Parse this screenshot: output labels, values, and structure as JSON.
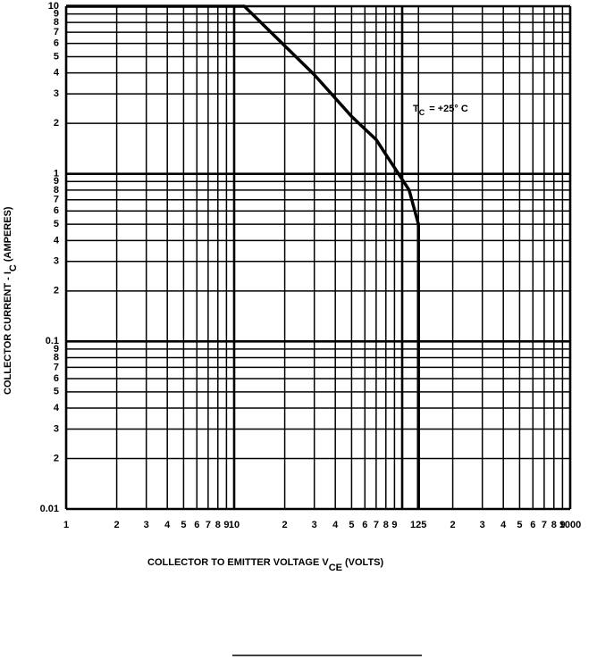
{
  "chart_data": {
    "type": "line",
    "log_x": true,
    "log_y": true,
    "grid": true,
    "xlabel": {
      "text": "COLLECTOR TO EMITTER VOLTAGE V",
      "subscript": "CE",
      "suffix": "(VOLTS)"
    },
    "ylabel": {
      "text": "COLLECTOR CURRENT - I",
      "subscript": "C",
      "suffix": "(AMPERES)"
    },
    "annotation": {
      "text": "T",
      "subscript": "C",
      "suffix": "= +25° C"
    },
    "xlim": [
      1,
      1000
    ],
    "ylim": [
      0.01,
      10
    ],
    "xticks": [
      1,
      2,
      3,
      4,
      5,
      6,
      7,
      8,
      9,
      10,
      {
        "value": 20,
        "label": "2"
      },
      {
        "value": 30,
        "label": "3"
      },
      {
        "value": 40,
        "label": "4"
      },
      {
        "value": 50,
        "label": "5"
      },
      {
        "value": 60,
        "label": "6"
      },
      {
        "value": 70,
        "label": "7"
      },
      {
        "value": 80,
        "label": "8"
      },
      {
        "value": 90,
        "label": "9"
      },
      125,
      {
        "value": 200,
        "label": "2"
      },
      {
        "value": 300,
        "label": "3"
      },
      {
        "value": 400,
        "label": "4"
      },
      {
        "value": 500,
        "label": "5"
      },
      {
        "value": 600,
        "label": "6"
      },
      {
        "value": 700,
        "label": "7"
      },
      {
        "value": 800,
        "label": "8"
      },
      {
        "value": 900,
        "label": "9"
      },
      1000
    ],
    "yticks": [
      0.01,
      {
        "value": 0.02,
        "label": "2"
      },
      {
        "value": 0.03,
        "label": "3"
      },
      {
        "value": 0.04,
        "label": "4"
      },
      {
        "value": 0.05,
        "label": "5"
      },
      {
        "value": 0.06,
        "label": "6"
      },
      {
        "value": 0.07,
        "label": "7"
      },
      {
        "value": 0.08,
        "label": "8"
      },
      {
        "value": 0.09,
        "label": "9"
      },
      0.1,
      {
        "value": 0.2,
        "label": "2"
      },
      {
        "value": 0.3,
        "label": "3"
      },
      {
        "value": 0.4,
        "label": "4"
      },
      {
        "value": 0.5,
        "label": "5"
      },
      {
        "value": 0.6,
        "label": "6"
      },
      {
        "value": 0.7,
        "label": "7"
      },
      {
        "value": 0.8,
        "label": "8"
      },
      {
        "value": 0.9,
        "label": "9"
      },
      1,
      2,
      3,
      4,
      5,
      6,
      7,
      8,
      9,
      10
    ],
    "series": [
      {
        "color": "#000000",
        "x": [
          1,
          11.5,
          30,
          50,
          70,
          110,
          125,
          125
        ],
        "values": [
          10,
          10,
          3.9,
          2.2,
          1.6,
          0.8,
          0.5,
          0.01
        ]
      }
    ]
  }
}
